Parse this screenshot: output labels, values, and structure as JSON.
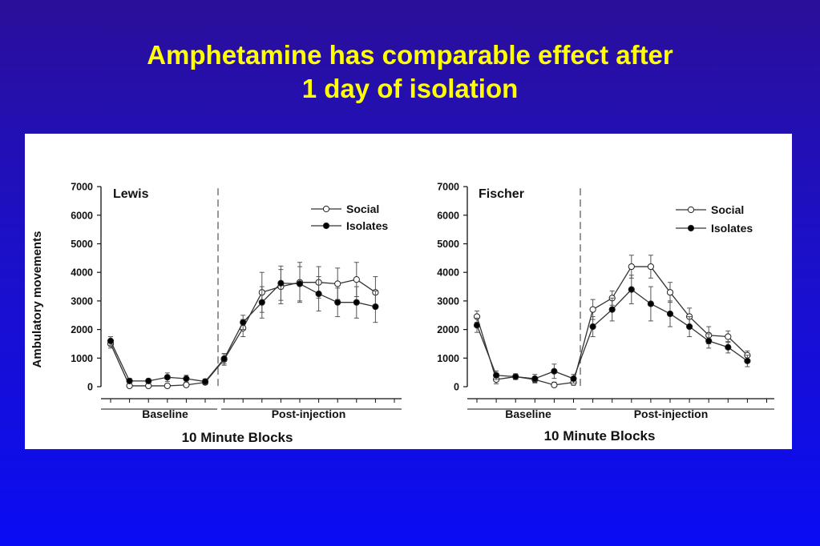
{
  "slide_title": {
    "line1": "Amphetamine has comparable effect after",
    "line2": "1 day of isolation"
  },
  "colors": {
    "title": "#ffff00",
    "background_top": "#2b0f9a",
    "background_bottom": "#0a0cf4",
    "panel": "#ffffff",
    "series_line": "#333333",
    "isolates_marker": "#000000",
    "social_marker": "#ffffff"
  },
  "chart_data": [
    {
      "type": "line",
      "title": "Lewis",
      "ylabel": "Ambulatory movements",
      "xlabel": "10 Minute Blocks",
      "x_groups": [
        "Baseline",
        "Post-injection"
      ],
      "ylim": [
        0,
        7000
      ],
      "yticks": [
        "0",
        "1000",
        "2000",
        "3000",
        "4000",
        "5000",
        "6000",
        "7000"
      ],
      "injection_marker_after_block": 6,
      "legend": "top-right",
      "x": [
        1,
        2,
        3,
        4,
        5,
        6,
        7,
        8,
        9,
        10,
        11,
        12,
        13,
        14,
        15,
        16
      ],
      "series": [
        {
          "name": "Social",
          "marker": "open-circle",
          "values": [
            1500,
            30,
            30,
            30,
            60,
            150,
            950,
            2050,
            3300,
            3500,
            3650,
            3650,
            3600,
            3750,
            3300
          ],
          "errors": [
            150,
            60,
            60,
            60,
            80,
            80,
            200,
            300,
            700,
            600,
            700,
            550,
            550,
            600,
            550
          ],
          "x": [
            1,
            2,
            3,
            4,
            5,
            6,
            7,
            8,
            9,
            10,
            11,
            12,
            13,
            14,
            15
          ]
        },
        {
          "name": "Isolates",
          "marker": "filled-circle",
          "values": [
            1600,
            200,
            200,
            330,
            280,
            180,
            980,
            2250,
            2950,
            3620,
            3600,
            3250,
            2950,
            2950,
            2800
          ],
          "errors": [
            150,
            90,
            80,
            150,
            120,
            90,
            180,
            250,
            550,
            600,
            600,
            600,
            500,
            550,
            550
          ],
          "x": [
            1,
            2,
            3,
            4,
            5,
            6,
            7,
            8,
            9,
            10,
            11,
            12,
            13,
            14,
            15
          ]
        }
      ]
    },
    {
      "type": "line",
      "title": "Fischer",
      "ylabel": "",
      "xlabel": "10 Minute Blocks",
      "x_groups": [
        "Baseline",
        "Post-injection"
      ],
      "ylim": [
        0,
        7000
      ],
      "yticks": [
        "0",
        "1000",
        "2000",
        "3000",
        "4000",
        "5000",
        "6000",
        "7000"
      ],
      "injection_marker_after_block": 6,
      "legend": "top-right",
      "series": [
        {
          "name": "Social",
          "marker": "open-circle",
          "x": [
            1,
            2,
            3,
            4,
            5,
            6,
            7,
            8,
            9,
            10,
            11,
            12,
            13,
            14,
            15
          ],
          "values": [
            2450,
            250,
            350,
            250,
            60,
            150,
            2700,
            3100,
            4200,
            4200,
            3300,
            2450,
            1800,
            1750,
            1100
          ],
          "errors": [
            200,
            150,
            100,
            100,
            100,
            100,
            350,
            250,
            400,
            400,
            350,
            300,
            300,
            200,
            150
          ]
        },
        {
          "name": "Isolates",
          "marker": "filled-circle",
          "x": [
            1,
            2,
            3,
            4,
            5,
            6,
            7,
            8,
            9,
            10,
            11,
            12,
            13,
            14,
            15
          ],
          "values": [
            2150,
            400,
            350,
            280,
            540,
            280,
            2100,
            2700,
            3400,
            2900,
            2550,
            2100,
            1600,
            1380,
            900
          ],
          "errors": [
            250,
            150,
            100,
            150,
            250,
            150,
            350,
            400,
            500,
            600,
            450,
            350,
            250,
            200,
            200
          ]
        }
      ]
    }
  ]
}
